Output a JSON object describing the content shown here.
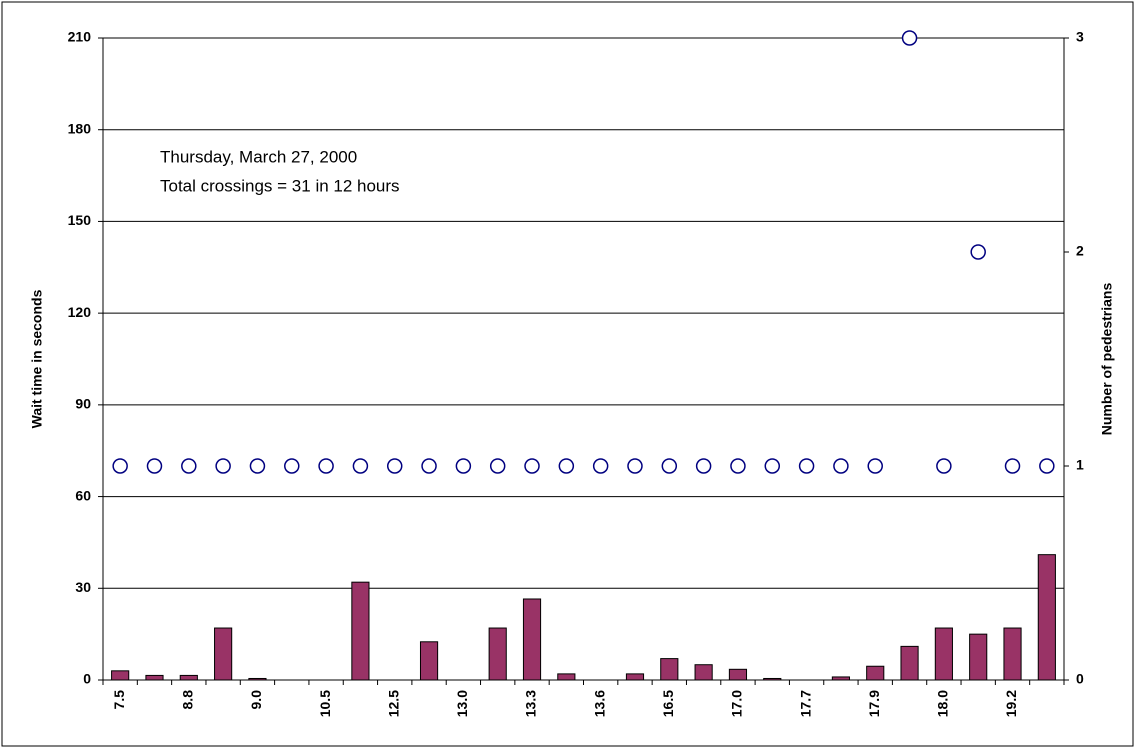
{
  "chart_data": {
    "type": "bar",
    "annotations": [
      "Thursday, March 27, 2000",
      "Total crossings = 31 in 12 hours"
    ],
    "ylabel": "Wait time in seconds",
    "y2label": "Number of pedestrians",
    "categories": [
      "7.5",
      null,
      "8.8",
      null,
      "9.0",
      null,
      "10.5",
      null,
      "12.5",
      null,
      "13.0",
      null,
      "13.3",
      null,
      "13.6",
      null,
      "16.5",
      null,
      "17.0",
      null,
      "17.7",
      null,
      "17.9",
      null,
      "18.0",
      null,
      "19.2",
      null
    ],
    "series": [
      {
        "type": "bar",
        "color": "#993366",
        "values": [
          3,
          1.5,
          1.5,
          17,
          0.5,
          0,
          0,
          32,
          0,
          12.5,
          0,
          17,
          26.5,
          2,
          0,
          2,
          7,
          5,
          3.5,
          0.5,
          0,
          1,
          4.5,
          11,
          17,
          15,
          17,
          41
        ]
      },
      {
        "type": "scatter",
        "axis": "y2",
        "color": "#000080",
        "values": [
          1,
          1,
          1,
          1,
          1,
          1,
          1,
          1,
          1,
          1,
          1,
          1,
          1,
          1,
          1,
          1,
          1,
          1,
          1,
          1,
          1,
          1,
          1,
          3,
          1,
          2,
          1,
          1
        ]
      }
    ],
    "ylim": [
      0,
      210
    ],
    "yticks": [
      0,
      30,
      60,
      90,
      120,
      150,
      180,
      210
    ],
    "y2lim": [
      0,
      3
    ],
    "y2ticks": [
      0,
      1,
      2,
      3
    ],
    "grid": true
  }
}
